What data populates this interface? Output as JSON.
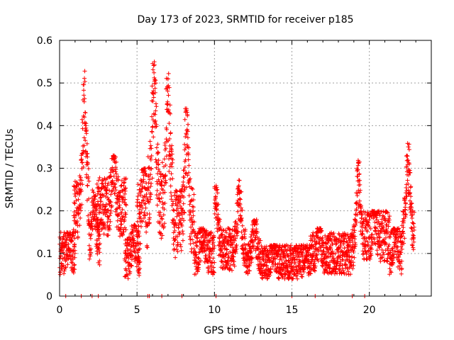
{
  "chart_data": {
    "type": "scatter",
    "title": "Day 173 of 2023, SRMTID for receiver p185",
    "xlabel": "GPS time / hours",
    "ylabel": "SRMTID / TECUs",
    "xlim": [
      0,
      24
    ],
    "ylim": [
      0,
      0.6
    ],
    "xticks": [
      "0",
      "5",
      "10",
      "15",
      "20"
    ],
    "yticks": [
      "0",
      "0.1",
      "0.2",
      "0.3",
      "0.4",
      "0.5",
      "0.6"
    ],
    "grid": true,
    "marker": "plus",
    "color": "#ff0000",
    "segments": [
      {
        "t0": 0.0,
        "t1": 1.0,
        "base": 0.1,
        "amp": 0.05,
        "peak_t": 0.6,
        "peak": 0.15
      },
      {
        "t0": 0.9,
        "t1": 1.9,
        "base": 0.2,
        "amp": 0.07,
        "peak_t": 1.6,
        "peak": 0.53
      },
      {
        "t0": 1.9,
        "t1": 2.6,
        "base": 0.12,
        "amp": 0.05,
        "peak_t": 2.2,
        "peak": 0.25
      },
      {
        "t0": 2.4,
        "t1": 4.3,
        "base": 0.21,
        "amp": 0.07,
        "peak_t": 3.5,
        "peak": 0.33
      },
      {
        "t0": 4.2,
        "t1": 5.2,
        "base": 0.09,
        "amp": 0.05,
        "peak_t": 4.8,
        "peak": 0.17
      },
      {
        "t0": 5.0,
        "t1": 5.7,
        "base": 0.18,
        "amp": 0.08,
        "peak_t": 5.4,
        "peak": 0.3
      },
      {
        "t0": 5.7,
        "t1": 6.4,
        "base": 0.24,
        "amp": 0.09,
        "peak_t": 6.1,
        "peak": 0.55
      },
      {
        "t0": 6.4,
        "t1": 7.3,
        "base": 0.22,
        "amp": 0.09,
        "peak_t": 7.0,
        "peak": 0.53
      },
      {
        "t0": 7.3,
        "t1": 8.7,
        "base": 0.17,
        "amp": 0.08,
        "peak_t": 8.2,
        "peak": 0.44
      },
      {
        "t0": 8.7,
        "t1": 10.0,
        "base": 0.1,
        "amp": 0.05,
        "peak_t": 9.2,
        "peak": 0.16
      },
      {
        "t0": 10.0,
        "t1": 11.2,
        "base": 0.11,
        "amp": 0.05,
        "peak_t": 10.1,
        "peak": 0.26
      },
      {
        "t0": 11.2,
        "t1": 12.0,
        "base": 0.11,
        "amp": 0.05,
        "peak_t": 11.6,
        "peak": 0.28
      },
      {
        "t0": 12.0,
        "t1": 13.0,
        "base": 0.09,
        "amp": 0.04,
        "peak_t": 12.6,
        "peak": 0.18
      },
      {
        "t0": 13.0,
        "t1": 14.7,
        "base": 0.08,
        "amp": 0.04,
        "peak_t": 13.8,
        "peak": 0.12
      },
      {
        "t0": 14.7,
        "t1": 16.2,
        "base": 0.08,
        "amp": 0.04,
        "peak_t": 15.9,
        "peak": 0.12
      },
      {
        "t0": 16.2,
        "t1": 18.9,
        "base": 0.1,
        "amp": 0.05,
        "peak_t": 16.8,
        "peak": 0.16
      },
      {
        "t0": 18.9,
        "t1": 19.6,
        "base": 0.11,
        "amp": 0.05,
        "peak_t": 19.3,
        "peak": 0.32
      },
      {
        "t0": 19.6,
        "t1": 21.3,
        "base": 0.14,
        "amp": 0.06,
        "peak_t": 20.3,
        "peak": 0.2
      },
      {
        "t0": 21.3,
        "t1": 22.1,
        "base": 0.1,
        "amp": 0.05,
        "peak_t": 21.7,
        "peak": 0.16
      },
      {
        "t0": 22.1,
        "t1": 22.9,
        "base": 0.15,
        "amp": 0.05,
        "peak_t": 22.5,
        "peak": 0.36
      }
    ],
    "zero_points_x": [
      0.4,
      1.4,
      2.1,
      2.5,
      5.7,
      5.8,
      6.6,
      7.9,
      10.1,
      15.0,
      16.5,
      18.9,
      19.7
    ]
  }
}
